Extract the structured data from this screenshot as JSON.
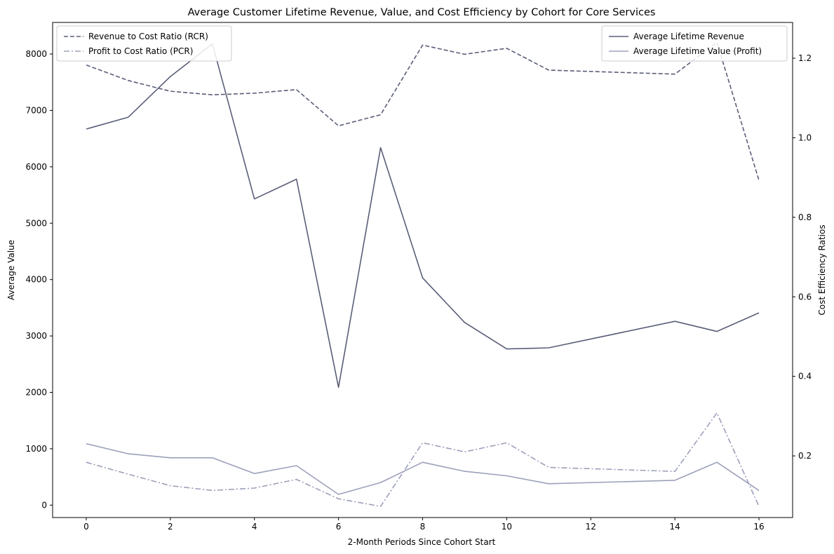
{
  "chart_data": {
    "type": "line",
    "title": "Average Customer Lifetime Revenue, Value, and Cost Efficiency by Cohort for Core Services",
    "xlabel": "2-Month Periods Since Cohort Start",
    "ylabel_left": "Average Value",
    "ylabel_right": "Cost Efficiency Ratios",
    "x": [
      0,
      1,
      2,
      3,
      4,
      5,
      6,
      7,
      8,
      9,
      10,
      11,
      14,
      15,
      16
    ],
    "xlim": [
      -0.8,
      16.8
    ],
    "ylim_left": [
      -220,
      8560
    ],
    "ylim_right": [
      0.045,
      1.29
    ],
    "xticks": [
      0,
      2,
      4,
      6,
      8,
      10,
      12,
      14,
      16
    ],
    "yticks_left": [
      0,
      1000,
      2000,
      3000,
      4000,
      5000,
      6000,
      7000,
      8000
    ],
    "yticks_right": [
      0.2,
      0.4,
      0.6,
      0.8,
      1.0,
      1.2
    ],
    "series_left": [
      {
        "name": "Average Lifetime Revenue",
        "color": "#5a5e78",
        "style": "solid",
        "values": [
          6670,
          6880,
          7600,
          8180,
          5430,
          5780,
          2090,
          6340,
          4030,
          3240,
          2770,
          2790,
          3260,
          3080,
          3410
        ]
      },
      {
        "name": "Average Lifetime Value (Profit)",
        "color": "#9ca0ba",
        "style": "solid",
        "values": [
          1090,
          910,
          840,
          840,
          560,
          700,
          190,
          400,
          760,
          600,
          520,
          380,
          440,
          760,
          260
        ]
      }
    ],
    "series_right": [
      {
        "name": "Revenue to Cost Ratio (RCR)",
        "color": "#5a5e78",
        "style": "dashed",
        "values": [
          1.183,
          1.144,
          1.117,
          1.108,
          1.112,
          1.121,
          1.03,
          1.058,
          1.233,
          1.21,
          1.225,
          1.17,
          1.16,
          1.24,
          0.893
        ]
      },
      {
        "name": "Profit to Cost Ratio (PCR)",
        "color": "#9ca0ba",
        "style": "dashdot",
        "values": [
          0.184,
          0.154,
          0.125,
          0.113,
          0.119,
          0.141,
          0.092,
          0.073,
          0.233,
          0.21,
          0.233,
          0.171,
          0.161,
          0.308,
          0.073
        ]
      }
    ],
    "legend_left_position": "upper-left",
    "legend_right_position": "upper-right",
    "grid": false
  }
}
